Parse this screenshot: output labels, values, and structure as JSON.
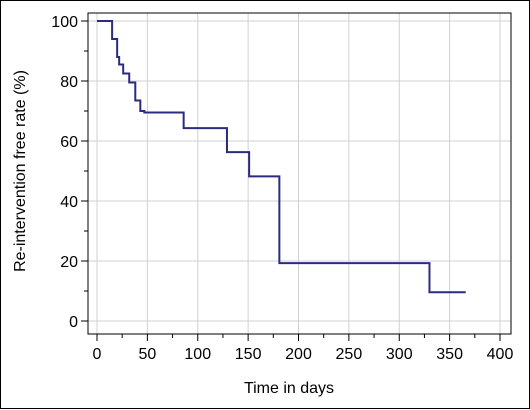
{
  "chart_data": {
    "type": "line",
    "step": true,
    "title": "",
    "xlabel": "Time in days",
    "ylabel": "Re-intervention free rate (%)",
    "xlim": [
      0,
      400
    ],
    "ylim": [
      0,
      100
    ],
    "xticks": [
      0,
      50,
      100,
      150,
      200,
      250,
      300,
      350,
      400
    ],
    "yticks": [
      0,
      20,
      40,
      60,
      80,
      100
    ],
    "grid": true,
    "line_color": "#2b2b80",
    "grid_color": "#d0d0d0",
    "series": [
      {
        "x": [
          0,
          15,
          20,
          22,
          26,
          32,
          38,
          43,
          47,
          86,
          129,
          151,
          181,
          330,
          366
        ],
        "y": [
          100,
          94,
          88,
          85.5,
          82.5,
          79.5,
          73.5,
          70,
          69.5,
          64.3,
          56.3,
          48.2,
          19.3,
          9.6,
          9.6
        ]
      }
    ]
  }
}
